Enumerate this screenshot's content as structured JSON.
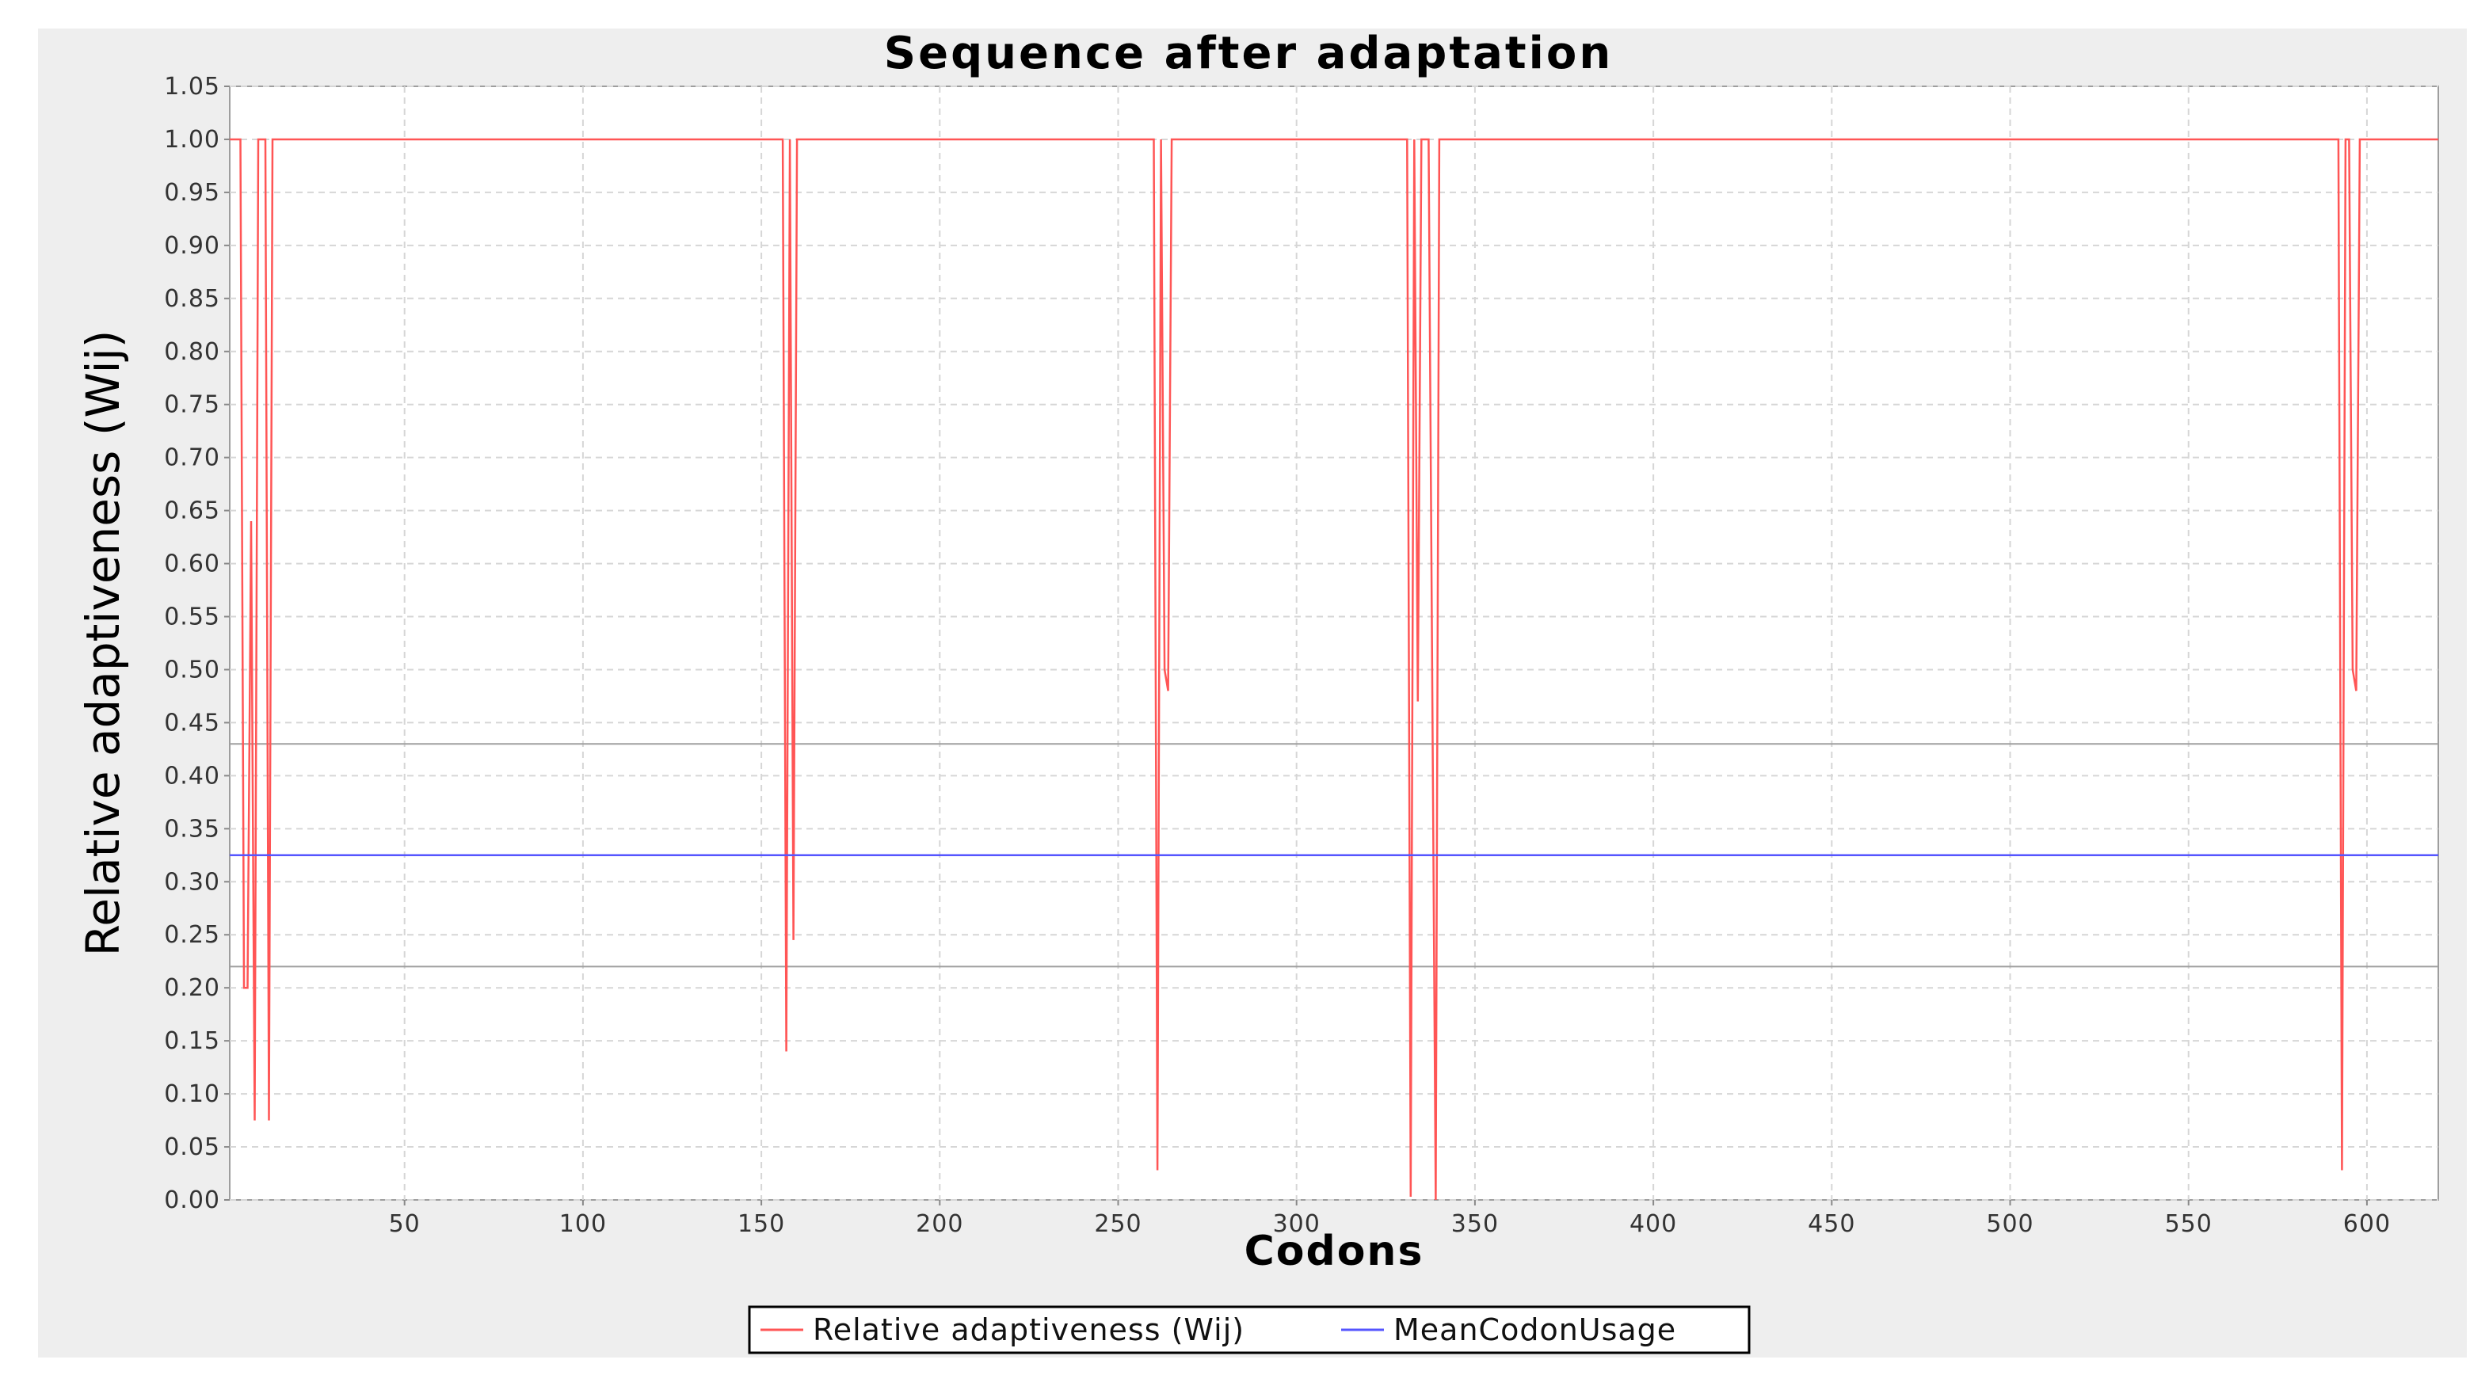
{
  "chart_data": {
    "type": "line",
    "title": "Sequence after adaptation",
    "xlabel": "Codons",
    "ylabel": "Relative adaptiveness (Wij)",
    "xlim": [
      1,
      620
    ],
    "ylim": [
      0,
      1.05
    ],
    "x_ticks": [
      50,
      100,
      150,
      200,
      250,
      300,
      350,
      400,
      450,
      500,
      550,
      600
    ],
    "y_ticks": [
      "0.00",
      "0.05",
      "0.10",
      "0.15",
      "0.20",
      "0.25",
      "0.30",
      "0.35",
      "0.40",
      "0.45",
      "0.50",
      "0.55",
      "0.60",
      "0.65",
      "0.70",
      "0.75",
      "0.80",
      "0.85",
      "0.90",
      "0.95",
      "1.00",
      "1.05"
    ],
    "grid": true,
    "legend": "bottom",
    "reference_lines": [
      0.43,
      0.22
    ],
    "series": [
      {
        "name": "Relative adaptiveness (Wij)",
        "color": "#ff5555",
        "points": [
          [
            1,
            1.0
          ],
          [
            4,
            1.0
          ],
          [
            5,
            0.2
          ],
          [
            6,
            0.2
          ],
          [
            7,
            0.64
          ],
          [
            8,
            0.075
          ],
          [
            9,
            1.0
          ],
          [
            10,
            1.0
          ],
          [
            11,
            1.0
          ],
          [
            12,
            0.075
          ],
          [
            13,
            1.0
          ],
          [
            14,
            1.0
          ],
          [
            155,
            1.0
          ],
          [
            156,
            1.0
          ],
          [
            157,
            0.14
          ],
          [
            158,
            1.0
          ],
          [
            159,
            0.245
          ],
          [
            160,
            1.0
          ],
          [
            161,
            1.0
          ],
          [
            259,
            1.0
          ],
          [
            260,
            1.0
          ],
          [
            261,
            0.028
          ],
          [
            262,
            1.0
          ],
          [
            263,
            0.5
          ],
          [
            264,
            0.48
          ],
          [
            265,
            1.0
          ],
          [
            266,
            1.0
          ],
          [
            330,
            1.0
          ],
          [
            331,
            1.0
          ],
          [
            332,
            0.003
          ],
          [
            333,
            1.0
          ],
          [
            334,
            0.47
          ],
          [
            335,
            1.0
          ],
          [
            337,
            1.0
          ],
          [
            339,
            0.0
          ],
          [
            340,
            1.0
          ],
          [
            341,
            1.0
          ],
          [
            591,
            1.0
          ],
          [
            592,
            1.0
          ],
          [
            593,
            0.028
          ],
          [
            594,
            1.0
          ],
          [
            595,
            1.0
          ],
          [
            596,
            0.5
          ],
          [
            597,
            0.48
          ],
          [
            598,
            1.0
          ],
          [
            599,
            1.0
          ],
          [
            620,
            1.0
          ]
        ]
      },
      {
        "name": "MeanCodonUsage",
        "color": "#5555ff",
        "constant": 0.325
      }
    ]
  }
}
